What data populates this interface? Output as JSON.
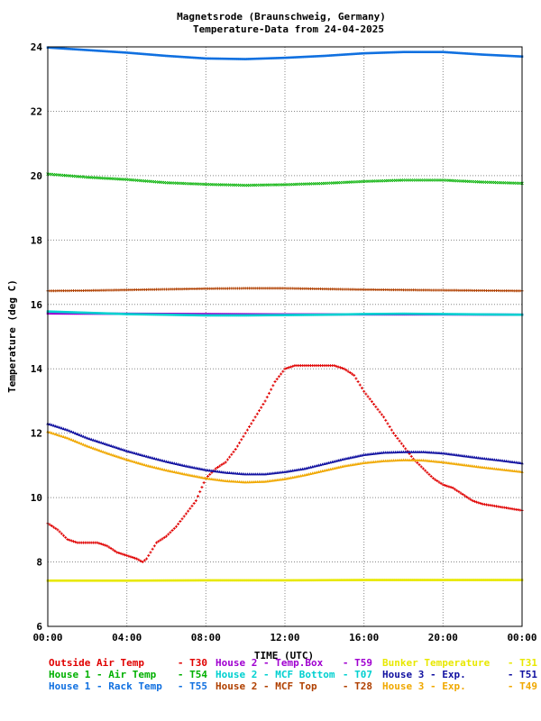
{
  "chart_data": {
    "type": "scatter",
    "title": "Magnetsrode (Braunschweig, Germany)",
    "subtitle": "Temperature-Data from 24-04-2025",
    "xlabel": "TIME (UTC)",
    "ylabel": "Temperature (deg C)",
    "xlim": [
      0,
      24
    ],
    "ylim": [
      6,
      24
    ],
    "x_ticks": [
      "00:00",
      "04:00",
      "08:00",
      "12:00",
      "16:00",
      "20:00",
      "00:00"
    ],
    "y_ticks": [
      6,
      8,
      10,
      12,
      14,
      16,
      18,
      20,
      22,
      24
    ],
    "grid": true,
    "legend_position": "bottom",
    "series": [
      {
        "name": "Outside Air Temp",
        "code": "T30",
        "color": "#e00000",
        "marker": "+",
        "x": [
          0,
          0.5,
          1,
          1.5,
          2,
          2.5,
          3,
          3.5,
          4,
          4.5,
          4.8,
          5,
          5.5,
          6,
          6.5,
          7,
          7.5,
          8,
          8.5,
          9,
          9.5,
          10,
          10.5,
          11,
          11.5,
          12,
          12.5,
          13,
          13.5,
          14,
          14.5,
          15,
          15.5,
          16,
          16.5,
          17,
          17.5,
          18,
          18.5,
          19,
          19.5,
          20,
          20.5,
          21,
          21.5,
          22,
          22.5,
          23,
          23.5,
          24
        ],
        "y": [
          9.2,
          9.0,
          8.7,
          8.6,
          8.6,
          8.6,
          8.5,
          8.3,
          8.2,
          8.1,
          8.0,
          8.1,
          8.6,
          8.8,
          9.1,
          9.5,
          9.9,
          10.6,
          10.9,
          11.1,
          11.5,
          12.0,
          12.5,
          13.0,
          13.6,
          14.0,
          14.1,
          14.1,
          14.1,
          14.1,
          14.1,
          14.0,
          13.8,
          13.3,
          12.9,
          12.5,
          12.0,
          11.6,
          11.2,
          10.9,
          10.6,
          10.4,
          10.3,
          10.1,
          9.9,
          9.8,
          9.75,
          9.7,
          9.65,
          9.6
        ]
      },
      {
        "name": "House 1 - Air  Temp",
        "code": "T54",
        "color": "#00b000",
        "marker": "x",
        "x": [
          0,
          2,
          4,
          6,
          8,
          10,
          12,
          14,
          16,
          18,
          20,
          22,
          24
        ],
        "y": [
          20.05,
          19.95,
          19.88,
          19.78,
          19.73,
          19.7,
          19.72,
          19.76,
          19.82,
          19.86,
          19.86,
          19.8,
          19.76
        ]
      },
      {
        "name": "House 1 - Rack Temp",
        "code": "T55",
        "color": "#1070e0",
        "marker": "square",
        "x": [
          0,
          2,
          4,
          6,
          8,
          10,
          12,
          14,
          16,
          18,
          20,
          22,
          24
        ],
        "y": [
          23.98,
          23.9,
          23.82,
          23.72,
          23.64,
          23.62,
          23.66,
          23.72,
          23.8,
          23.84,
          23.84,
          23.76,
          23.7
        ]
      },
      {
        "name": "House 2 - Temp.Box",
        "code": "T59",
        "color": "#a000d0",
        "marker": "square",
        "x": [
          0,
          4,
          8,
          12,
          16,
          20,
          24
        ],
        "y": [
          15.72,
          15.71,
          15.7,
          15.69,
          15.69,
          15.69,
          15.68
        ]
      },
      {
        "name": "House 2 - MCF Bottom",
        "code": "T07",
        "color": "#00d0d0",
        "marker": "square",
        "x": [
          0,
          2,
          4,
          6,
          8,
          10,
          12,
          14,
          16,
          18,
          20,
          22,
          24
        ],
        "y": [
          15.78,
          15.74,
          15.7,
          15.68,
          15.66,
          15.66,
          15.67,
          15.68,
          15.7,
          15.71,
          15.7,
          15.69,
          15.68
        ]
      },
      {
        "name": "House 2 - MCF Top",
        "code": "T28",
        "color": "#b04000",
        "marker": "+",
        "x": [
          0,
          2,
          4,
          6,
          8,
          10,
          12,
          14,
          16,
          18,
          20,
          22,
          24
        ],
        "y": [
          16.42,
          16.43,
          16.45,
          16.47,
          16.49,
          16.5,
          16.5,
          16.48,
          16.46,
          16.45,
          16.44,
          16.43,
          16.42
        ]
      },
      {
        "name": "Bunker Temperature",
        "code": "T31",
        "color": "#e8e800",
        "marker": "square",
        "x": [
          0,
          4,
          8,
          12,
          16,
          20,
          24
        ],
        "y": [
          7.42,
          7.42,
          7.43,
          7.43,
          7.44,
          7.44,
          7.44
        ]
      },
      {
        "name": "House 3 - Exp.",
        "code": "T51",
        "color": "#1010a0",
        "marker": "triangle",
        "x": [
          0,
          1,
          2,
          3,
          4,
          5,
          6,
          7,
          8,
          9,
          10,
          11,
          12,
          13,
          14,
          15,
          16,
          17,
          18,
          19,
          20,
          21,
          22,
          23,
          24
        ],
        "y": [
          12.3,
          12.1,
          11.85,
          11.65,
          11.45,
          11.28,
          11.12,
          10.98,
          10.86,
          10.78,
          10.73,
          10.73,
          10.8,
          10.9,
          11.05,
          11.2,
          11.33,
          11.4,
          11.42,
          11.42,
          11.38,
          11.3,
          11.22,
          11.15,
          11.07
        ]
      },
      {
        "name": "House 3 - Exp.",
        "code": "T49",
        "color": "#f0a800",
        "marker": "triangle",
        "x": [
          0,
          1,
          2,
          3,
          4,
          5,
          6,
          7,
          8,
          9,
          10,
          11,
          12,
          13,
          14,
          15,
          16,
          17,
          18,
          19,
          20,
          21,
          22,
          23,
          24
        ],
        "y": [
          12.05,
          11.85,
          11.6,
          11.38,
          11.18,
          11.0,
          10.85,
          10.72,
          10.6,
          10.52,
          10.48,
          10.5,
          10.58,
          10.7,
          10.84,
          10.98,
          11.08,
          11.14,
          11.17,
          11.16,
          11.1,
          11.02,
          10.94,
          10.87,
          10.8
        ]
      }
    ]
  },
  "legend": [
    {
      "label": "Outside Air Temp",
      "code": "T30",
      "color": "#e00000"
    },
    {
      "label": "House 2 - Temp.Box",
      "code": "T59",
      "color": "#a000d0"
    },
    {
      "label": "Bunker Temperature",
      "code": "T31",
      "color": "#e8e800"
    },
    {
      "label": "House 1 - Air  Temp",
      "code": "T54",
      "color": "#00b000"
    },
    {
      "label": "House 2 - MCF Bottom",
      "code": "T07",
      "color": "#00d0d0"
    },
    {
      "label": "House 3 - Exp.",
      "code": "T51",
      "color": "#1010a0"
    },
    {
      "label": "House 1 - Rack Temp",
      "code": "T55",
      "color": "#1070e0"
    },
    {
      "label": "House 2 - MCF Top",
      "code": "T28",
      "color": "#b04000"
    },
    {
      "label": "House 3 - Exp.",
      "code": "T49",
      "color": "#f0a800"
    }
  ]
}
